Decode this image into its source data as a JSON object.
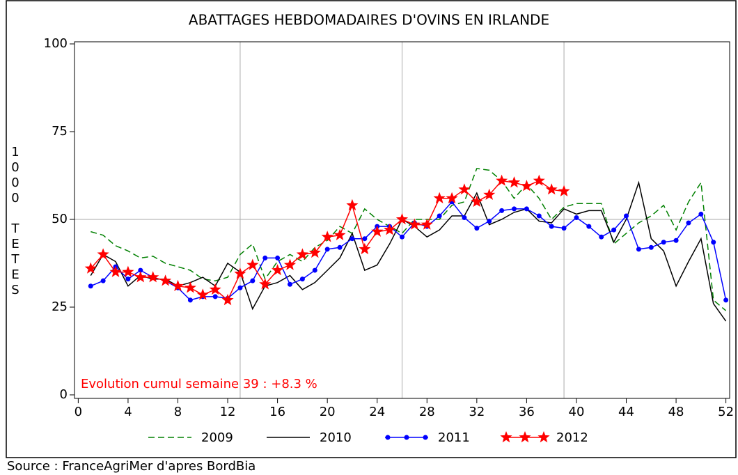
{
  "chart_data": {
    "type": "line",
    "title": "ABATTAGES HEBDOMADAIRES D'OVINS EN IRLANDE",
    "y_label": "1000 TETES",
    "annotation": "Evolution cumul semaine 39 : +8.3 %",
    "source": "Source : FranceAgriMer d'apres BordBia",
    "x": [
      1,
      2,
      3,
      4,
      5,
      6,
      7,
      8,
      9,
      10,
      11,
      12,
      13,
      14,
      15,
      16,
      17,
      18,
      19,
      20,
      21,
      22,
      23,
      24,
      25,
      26,
      27,
      28,
      29,
      30,
      31,
      32,
      33,
      34,
      35,
      36,
      37,
      38,
      39,
      40,
      41,
      42,
      43,
      44,
      45,
      46,
      47,
      48,
      49,
      50,
      51,
      52
    ],
    "xlim": [
      -0.3,
      52.3
    ],
    "xticks": [
      0,
      4,
      8,
      12,
      16,
      20,
      24,
      28,
      32,
      36,
      40,
      44,
      48,
      52
    ],
    "ylim": [
      -1,
      100.6
    ],
    "yticks": [
      0,
      25,
      50,
      75,
      100
    ],
    "xgrid": [
      13,
      26,
      39
    ],
    "ygrid": [
      50
    ],
    "series": [
      {
        "name": "2009",
        "color": "#008000",
        "line_style": "dashed",
        "marker": "none",
        "values": [
          46.5,
          45.5,
          42.5,
          41,
          39,
          39.5,
          37.5,
          36.5,
          35.5,
          33,
          32.5,
          33.5,
          40,
          43,
          33,
          38,
          40,
          38,
          42,
          44,
          48,
          46,
          53,
          50,
          48,
          46,
          50,
          50,
          50,
          54,
          55,
          64.5,
          64,
          61,
          56,
          60,
          56,
          50,
          53.5,
          54.5,
          54.5,
          54.5,
          43,
          46,
          49,
          51,
          54,
          47,
          55,
          60.5,
          27,
          24
        ]
      },
      {
        "name": "2010",
        "color": "#000000",
        "line_style": "solid",
        "marker": "none",
        "values": [
          34,
          40,
          38,
          31,
          34,
          33,
          33,
          31,
          32,
          33.5,
          31,
          37.5,
          35,
          24.5,
          31,
          32,
          34,
          30,
          32,
          35.5,
          39,
          46,
          35.5,
          37,
          43,
          50,
          48,
          45,
          47,
          51,
          51,
          57.5,
          48.5,
          50,
          52,
          53,
          49.5,
          49,
          53,
          51.5,
          52.5,
          52.5,
          43.5,
          50,
          60.5,
          44.5,
          41,
          31,
          38,
          44.5,
          26,
          21
        ]
      },
      {
        "name": "2011",
        "color": "#0000ff",
        "line_style": "solid",
        "marker": "circle",
        "values": [
          31,
          32.5,
          36.5,
          33,
          35.5,
          33.5,
          32.5,
          30.5,
          27,
          28,
          28,
          27.5,
          30.5,
          32.5,
          39,
          39,
          31.5,
          33,
          35.5,
          41.5,
          42,
          44.5,
          44.5,
          48,
          48,
          45,
          49,
          48,
          51,
          55,
          50.5,
          47.5,
          49.5,
          52.5,
          53,
          53,
          51,
          48,
          47.5,
          50.5,
          48,
          45,
          47,
          51,
          41.5,
          42,
          43.5,
          44,
          49,
          51.5,
          43.5,
          27
        ]
      },
      {
        "name": "2012",
        "color": "#ff0000",
        "line_style": "solid",
        "marker": "star",
        "values": [
          36,
          40,
          35,
          35,
          33.5,
          33.5,
          32.5,
          31,
          30.5,
          28.5,
          30,
          27,
          34.5,
          37,
          31.5,
          35.5,
          37,
          40,
          40.5,
          45,
          45.5,
          54,
          41.5,
          46.5,
          47,
          50,
          48.5,
          48.5,
          56,
          56,
          58.5,
          55,
          57,
          61,
          60.5,
          59.5,
          61,
          58.5,
          58,
          null,
          null,
          null,
          null,
          null,
          null,
          null,
          null,
          null,
          null,
          null,
          null,
          null
        ]
      }
    ]
  }
}
